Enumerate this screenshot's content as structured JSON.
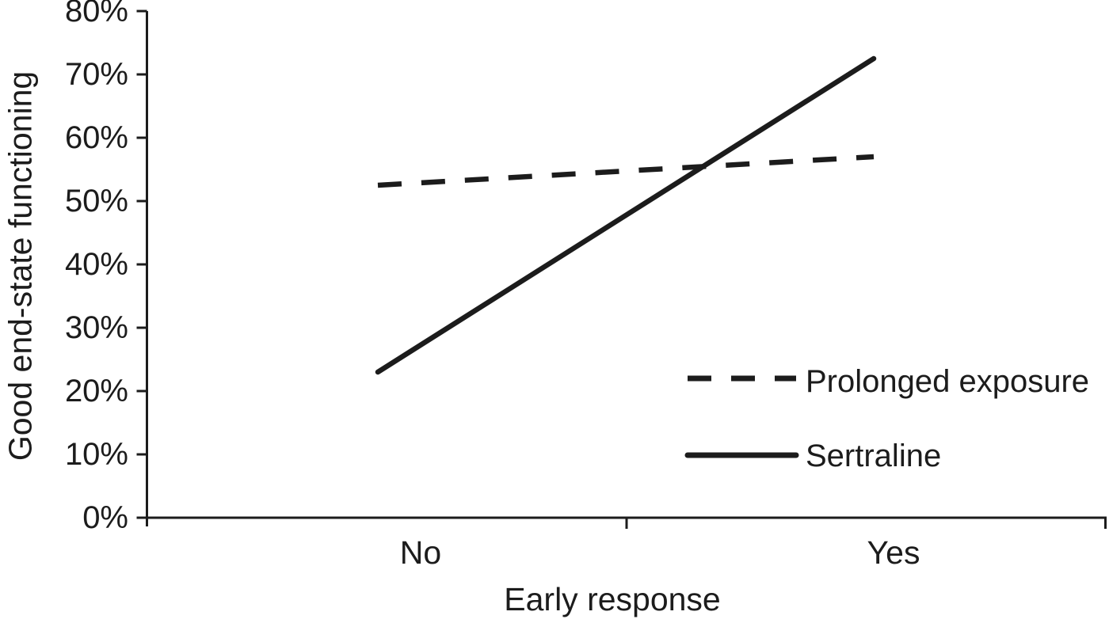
{
  "figure": {
    "background": "#ffffff",
    "ink_color": "#1c1c1c"
  },
  "chart_data": {
    "type": "line",
    "title": "",
    "xlabel": "Early response",
    "ylabel": "Good end-state functioning",
    "categories": [
      "No",
      "Yes"
    ],
    "series": [
      {
        "name": "Prolonged exposure",
        "line_style": "dashed",
        "values_pct": [
          52.5,
          57.0
        ]
      },
      {
        "name": "Sertraline",
        "line_style": "solid",
        "values_pct": [
          23.0,
          72.5
        ]
      }
    ],
    "y_axis": {
      "min": 0,
      "max": 80,
      "step": 10,
      "unit": "%",
      "tick_labels": [
        "0%",
        "10%",
        "20%",
        "30%",
        "40%",
        "50%",
        "60%",
        "70%",
        "80%"
      ]
    },
    "x_axis": {
      "tick_labels": [
        "No",
        "Yes"
      ]
    },
    "legend": {
      "position": "lower-right",
      "entries": [
        "Prolonged exposure",
        "Sertraline"
      ]
    },
    "grid": "off"
  }
}
